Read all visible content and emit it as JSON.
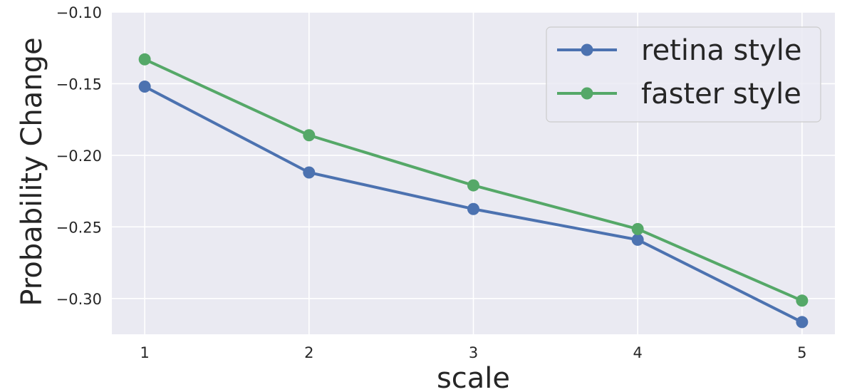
{
  "chart_data": {
    "type": "line",
    "title": "",
    "xlabel": "scale",
    "ylabel": "Probability Change",
    "x": [
      1,
      2,
      3,
      4,
      5
    ],
    "xticks": [
      "1",
      "2",
      "3",
      "4",
      "5"
    ],
    "yticks": [
      "−0.30",
      "−0.25",
      "−0.20",
      "−0.15",
      "−0.10"
    ],
    "ytick_values": [
      -0.3,
      -0.25,
      -0.2,
      -0.15,
      -0.1
    ],
    "xlim": [
      0.8,
      5.2
    ],
    "ylim": [
      -0.325,
      -0.1
    ],
    "grid": true,
    "legend": "top-right",
    "series": [
      {
        "name": "retina style",
        "values": [
          -0.152,
          -0.212,
          -0.2375,
          -0.259,
          -0.3165
        ],
        "color": "#4c72b0"
      },
      {
        "name": "faster style",
        "values": [
          -0.133,
          -0.186,
          -0.221,
          -0.2515,
          -0.3015
        ],
        "color": "#55a868"
      }
    ]
  },
  "colors": {
    "plot_background": "#eaeaf2",
    "grid": "#ffffff",
    "text": "#262626"
  }
}
